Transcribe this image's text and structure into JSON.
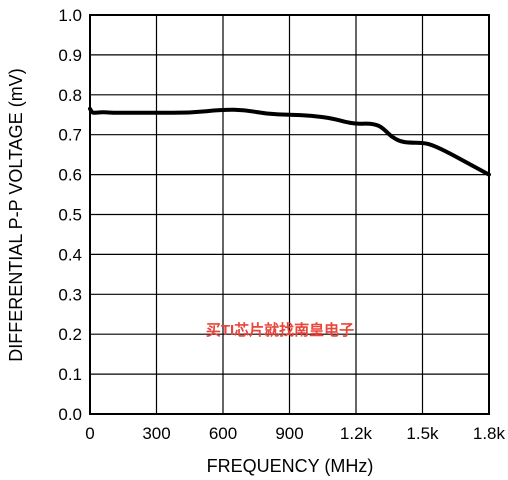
{
  "chart_data": {
    "type": "line",
    "title": "",
    "xlabel": "FREQUENCY (MHz)",
    "ylabel": "DIFFERENTIAL P-P VOLTAGE (mV)",
    "xlim": [
      0,
      1800
    ],
    "ylim": [
      0.0,
      1.0
    ],
    "grid": true,
    "x_ticks": [
      0,
      300,
      600,
      900,
      1200,
      1500,
      1800
    ],
    "x_tick_labels": [
      "0",
      "300",
      "600",
      "900",
      "1.2k",
      "1.5k",
      "1.8k"
    ],
    "y_ticks": [
      0.0,
      0.1,
      0.2,
      0.3,
      0.4,
      0.5,
      0.6,
      0.7,
      0.8,
      0.9,
      1.0
    ],
    "y_tick_labels": [
      "0.0",
      "0.1",
      "0.2",
      "0.3",
      "0.4",
      "0.5",
      "0.6",
      "0.7",
      "0.8",
      "0.9",
      "1.0"
    ],
    "series": [
      {
        "color": "#000000",
        "x": [
          0,
          8,
          15,
          30,
          60,
          90,
          150,
          300,
          450,
          600,
          700,
          800,
          900,
          1000,
          1100,
          1150,
          1200,
          1260,
          1300,
          1330,
          1360,
          1400,
          1440,
          1500,
          1540,
          1600,
          1700,
          1800
        ],
        "y": [
          0.765,
          0.757,
          0.755,
          0.755,
          0.757,
          0.755,
          0.755,
          0.755,
          0.755,
          0.763,
          0.762,
          0.752,
          0.75,
          0.748,
          0.74,
          0.732,
          0.727,
          0.728,
          0.724,
          0.712,
          0.695,
          0.683,
          0.68,
          0.68,
          0.675,
          0.66,
          0.63,
          0.6
        ]
      }
    ]
  },
  "watermark": "买TI芯片就找南皇电子"
}
